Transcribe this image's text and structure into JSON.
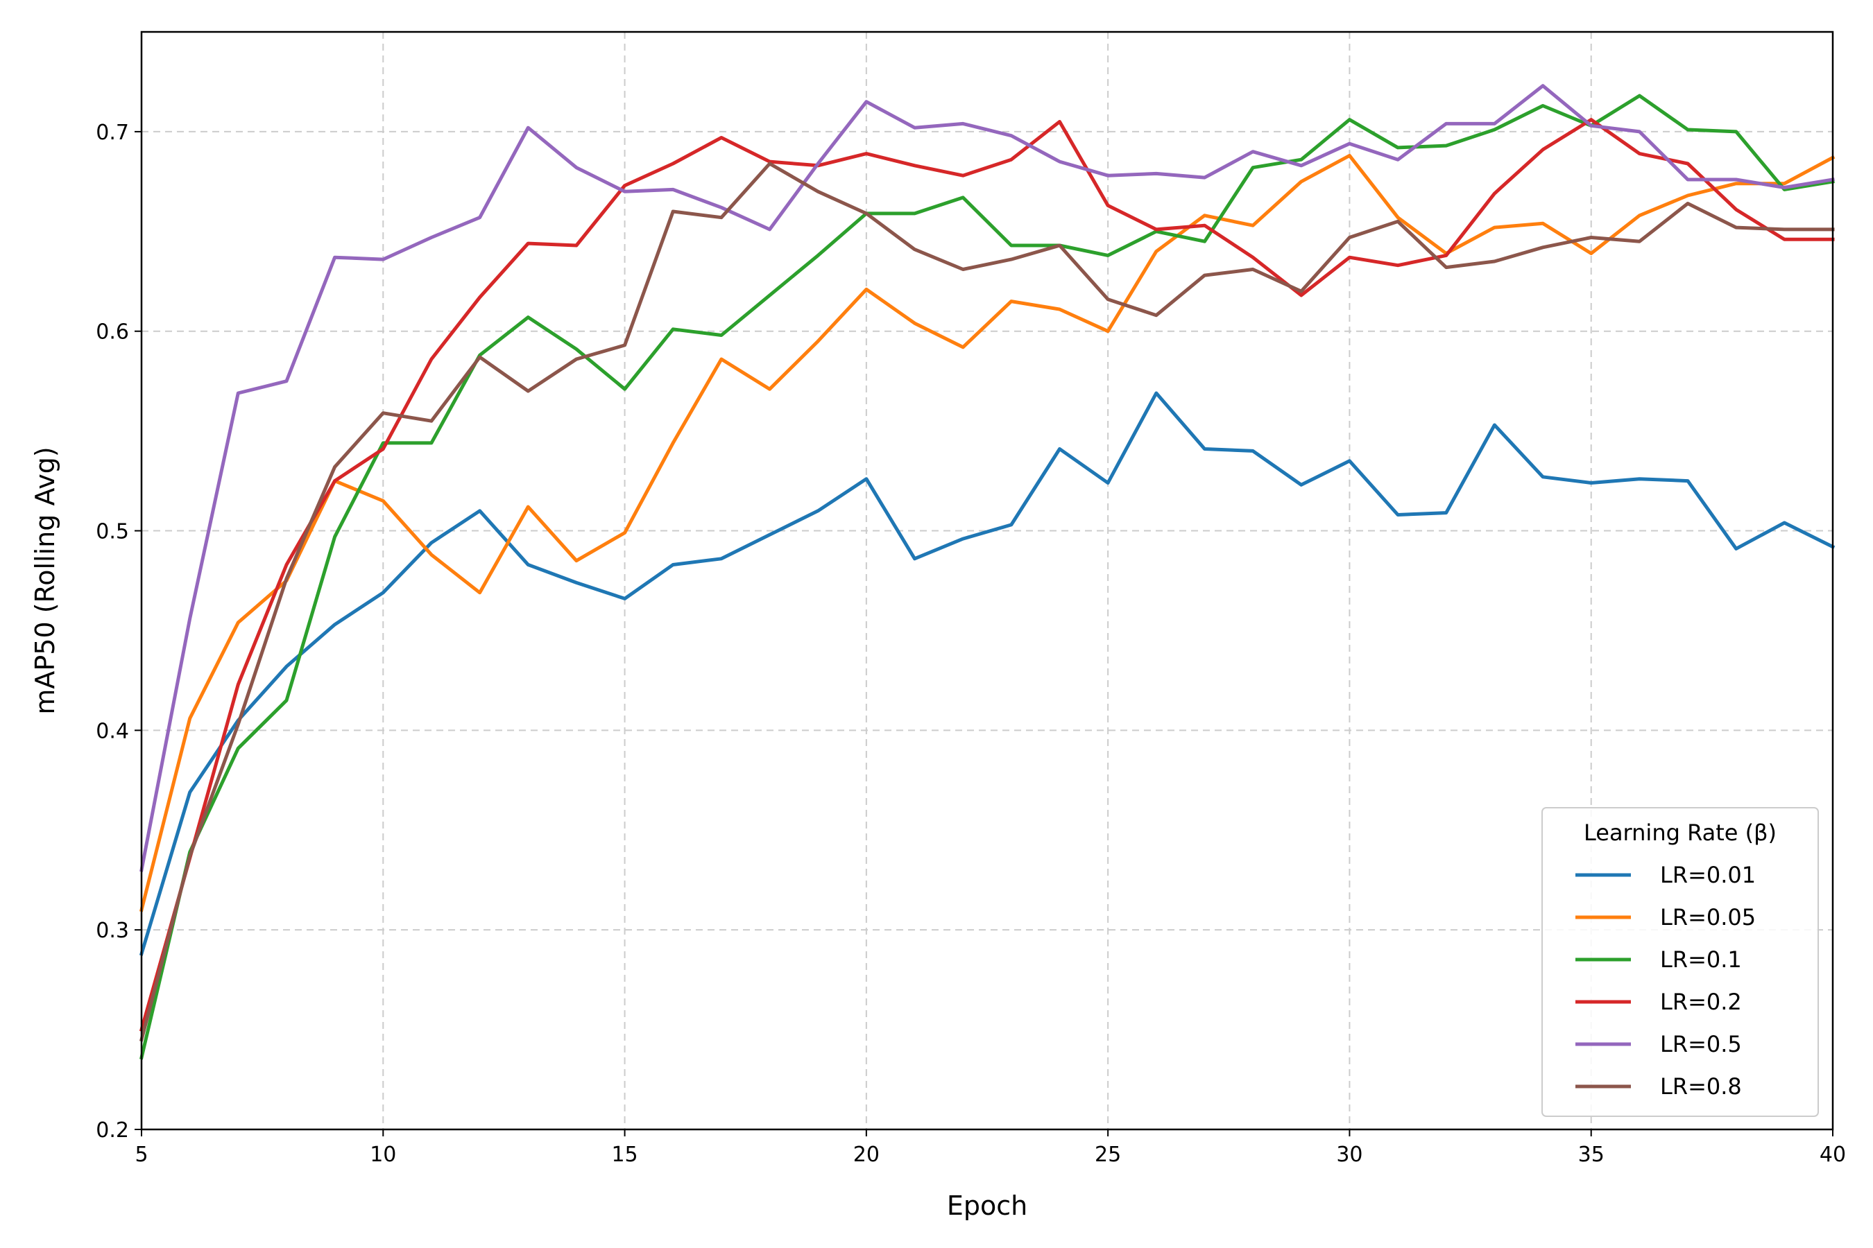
{
  "chart_data": {
    "type": "line",
    "xlabel": "Epoch",
    "ylabel": "mAP50 (Rolling Avg)",
    "xlim": [
      5,
      40
    ],
    "ylim": [
      0.2,
      0.75
    ],
    "xticks": [
      5,
      10,
      15,
      20,
      25,
      30,
      35,
      40
    ],
    "yticks": [
      0.2,
      0.3,
      0.4,
      0.5,
      0.6,
      0.7
    ],
    "grid": true,
    "legend": {
      "title": "Learning Rate (β)",
      "placement": "lower-right"
    },
    "x": [
      5,
      6,
      7,
      8,
      9,
      10,
      11,
      12,
      13,
      14,
      15,
      16,
      17,
      18,
      19,
      20,
      21,
      22,
      23,
      24,
      25,
      26,
      27,
      28,
      29,
      30,
      31,
      32,
      33,
      34,
      35,
      36,
      37,
      38,
      39,
      40
    ],
    "series": [
      {
        "name": "LR=0.01",
        "color": "#1f77b4",
        "values": [
          0.288,
          0.369,
          0.405,
          0.432,
          0.453,
          0.469,
          0.494,
          0.51,
          0.483,
          0.474,
          0.466,
          0.483,
          0.486,
          0.498,
          0.51,
          0.526,
          0.486,
          0.496,
          0.503,
          0.541,
          0.524,
          0.569,
          0.541,
          0.54,
          0.523,
          0.535,
          0.508,
          0.509,
          0.553,
          0.527,
          0.524,
          0.526,
          0.525,
          0.491,
          0.504,
          0.492
        ]
      },
      {
        "name": "LR=0.05",
        "color": "#ff7f0e",
        "values": [
          0.31,
          0.406,
          0.454,
          0.475,
          0.525,
          0.515,
          0.488,
          0.469,
          0.512,
          0.485,
          0.499,
          0.544,
          0.586,
          0.571,
          0.595,
          0.621,
          0.604,
          0.592,
          0.615,
          0.611,
          0.6,
          0.64,
          0.658,
          0.653,
          0.675,
          0.688,
          0.657,
          0.639,
          0.652,
          0.654,
          0.639,
          0.658,
          0.668,
          0.674,
          0.674,
          0.687
        ]
      },
      {
        "name": "LR=0.1",
        "color": "#2ca02c",
        "values": [
          0.236,
          0.339,
          0.391,
          0.415,
          0.497,
          0.544,
          0.544,
          0.588,
          0.607,
          0.591,
          0.571,
          0.601,
          0.598,
          0.618,
          0.638,
          0.659,
          0.659,
          0.667,
          0.643,
          0.643,
          0.638,
          0.65,
          0.645,
          0.682,
          0.686,
          0.706,
          0.692,
          0.693,
          0.701,
          0.713,
          0.703,
          0.718,
          0.701,
          0.7,
          0.671,
          0.675
        ]
      },
      {
        "name": "LR=0.2",
        "color": "#d62728",
        "values": [
          0.25,
          0.336,
          0.423,
          0.483,
          0.525,
          0.541,
          0.586,
          0.617,
          0.644,
          0.643,
          0.673,
          0.684,
          0.697,
          0.685,
          0.683,
          0.689,
          0.683,
          0.678,
          0.686,
          0.705,
          0.663,
          0.651,
          0.653,
          0.637,
          0.618,
          0.637,
          0.633,
          0.638,
          0.669,
          0.691,
          0.706,
          0.689,
          0.684,
          0.661,
          0.646,
          0.646
        ]
      },
      {
        "name": "LR=0.5",
        "color": "#9467bd",
        "values": [
          0.33,
          0.456,
          0.569,
          0.575,
          0.637,
          0.636,
          0.647,
          0.657,
          0.702,
          0.682,
          0.67,
          0.671,
          0.662,
          0.651,
          0.684,
          0.715,
          0.702,
          0.704,
          0.698,
          0.685,
          0.678,
          0.679,
          0.677,
          0.69,
          0.683,
          0.694,
          0.686,
          0.704,
          0.704,
          0.723,
          0.703,
          0.7,
          0.676,
          0.676,
          0.672,
          0.676
        ]
      },
      {
        "name": "LR=0.8",
        "color": "#8c564b",
        "values": [
          0.245,
          0.337,
          0.403,
          0.476,
          0.532,
          0.559,
          0.555,
          0.587,
          0.57,
          0.586,
          0.593,
          0.66,
          0.657,
          0.684,
          0.67,
          0.659,
          0.641,
          0.631,
          0.636,
          0.643,
          0.616,
          0.608,
          0.628,
          0.631,
          0.62,
          0.647,
          0.655,
          0.632,
          0.635,
          0.642,
          0.647,
          0.645,
          0.664,
          0.652,
          0.651,
          0.651
        ]
      }
    ]
  }
}
